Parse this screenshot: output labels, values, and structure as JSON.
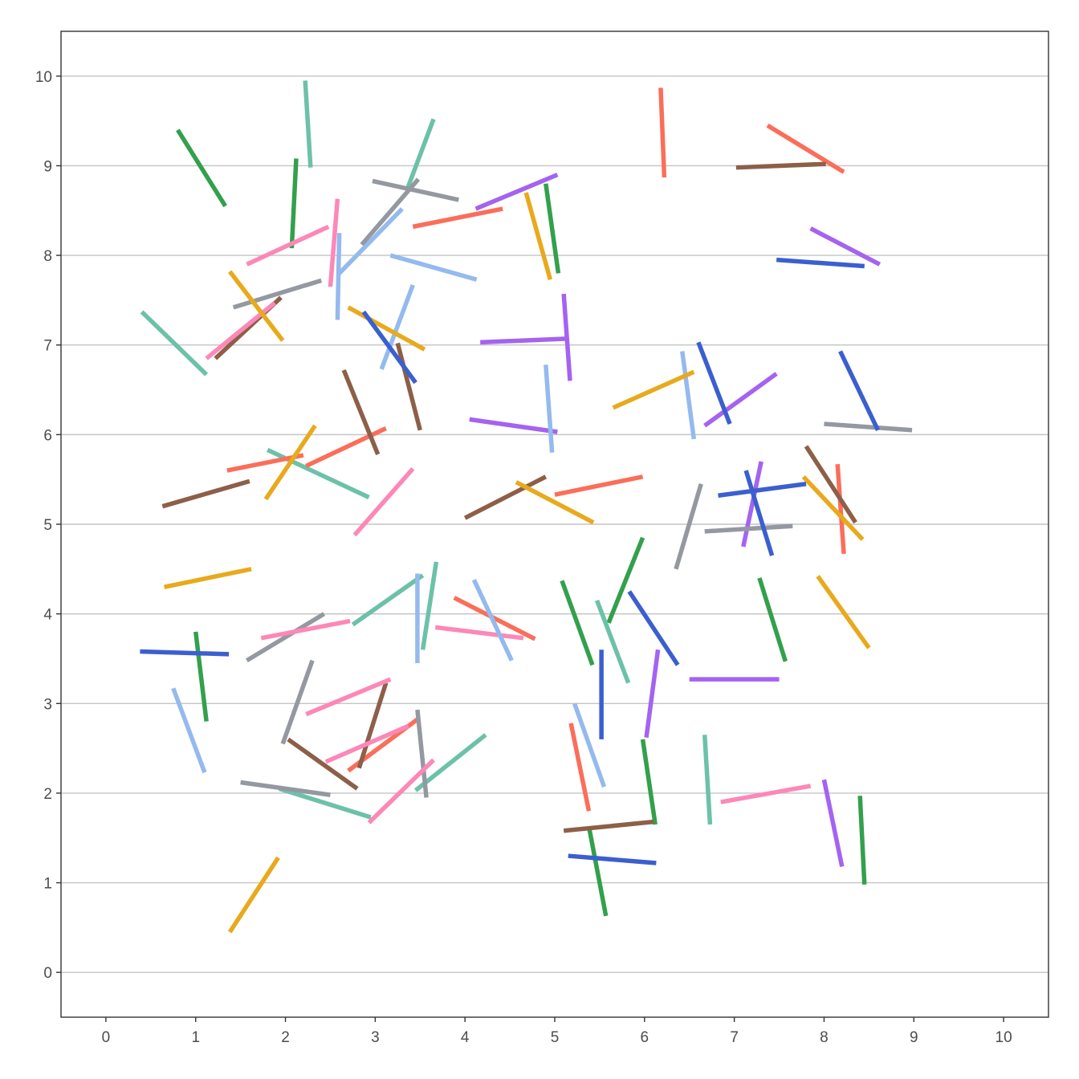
{
  "chart_data": {
    "type": "segments",
    "title": "",
    "xlabel": "",
    "ylabel": "",
    "xlim": [
      -0.5,
      10.5
    ],
    "ylim": [
      -0.5,
      10.5
    ],
    "x_ticks": [
      "0",
      "1",
      "2",
      "3",
      "4",
      "5",
      "6",
      "7",
      "8",
      "9",
      "10"
    ],
    "y_ticks": [
      "0",
      "1",
      "2",
      "3",
      "4",
      "5",
      "6",
      "7",
      "8",
      "9",
      "10"
    ],
    "grid": "horizontal major lines",
    "legend": "none",
    "colors": {
      "green": "#33a04c",
      "teal": "#6cc1a9",
      "salmon": "#fa6e5a",
      "brown": "#8d5f48",
      "purple": "#a463f0",
      "gray": "#9498a1",
      "pink": "#fc88b8",
      "lightblue": "#94baee",
      "gold": "#e8aa1c",
      "blue": "#3b5fcf"
    },
    "segments": [
      {
        "x1": 0.8,
        "y1": 9.4,
        "x2": 1.33,
        "y2": 8.55,
        "color": "green"
      },
      {
        "x1": 2.07,
        "y1": 8.08,
        "x2": 2.12,
        "y2": 9.08,
        "color": "green"
      },
      {
        "x1": 4.9,
        "y1": 8.8,
        "x2": 5.04,
        "y2": 7.8,
        "color": "green"
      },
      {
        "x1": 1.0,
        "y1": 3.8,
        "x2": 1.12,
        "y2": 2.8,
        "color": "green"
      },
      {
        "x1": 5.08,
        "y1": 4.37,
        "x2": 5.42,
        "y2": 3.43,
        "color": "green"
      },
      {
        "x1": 5.6,
        "y1": 3.9,
        "x2": 5.98,
        "y2": 4.85,
        "color": "green"
      },
      {
        "x1": 7.28,
        "y1": 4.4,
        "x2": 7.57,
        "y2": 3.47,
        "color": "green"
      },
      {
        "x1": 5.98,
        "y1": 2.6,
        "x2": 6.12,
        "y2": 1.65,
        "color": "green"
      },
      {
        "x1": 5.38,
        "y1": 1.63,
        "x2": 5.57,
        "y2": 0.63,
        "color": "green"
      },
      {
        "x1": 8.4,
        "y1": 1.97,
        "x2": 8.45,
        "y2": 0.98,
        "color": "green"
      },
      {
        "x1": 2.22,
        "y1": 9.95,
        "x2": 2.28,
        "y2": 8.98,
        "color": "teal"
      },
      {
        "x1": 3.35,
        "y1": 8.72,
        "x2": 3.65,
        "y2": 9.52,
        "color": "teal"
      },
      {
        "x1": 0.4,
        "y1": 7.37,
        "x2": 1.12,
        "y2": 6.67,
        "color": "teal"
      },
      {
        "x1": 1.8,
        "y1": 5.83,
        "x2": 2.93,
        "y2": 5.3,
        "color": "teal"
      },
      {
        "x1": 2.75,
        "y1": 3.88,
        "x2": 3.53,
        "y2": 4.43,
        "color": "teal"
      },
      {
        "x1": 3.53,
        "y1": 3.6,
        "x2": 3.68,
        "y2": 4.58,
        "color": "teal"
      },
      {
        "x1": 5.47,
        "y1": 4.15,
        "x2": 5.82,
        "y2": 3.23,
        "color": "teal"
      },
      {
        "x1": 3.45,
        "y1": 2.03,
        "x2": 4.23,
        "y2": 2.65,
        "color": "teal"
      },
      {
        "x1": 1.93,
        "y1": 2.05,
        "x2": 2.95,
        "y2": 1.73,
        "color": "teal"
      },
      {
        "x1": 6.67,
        "y1": 2.65,
        "x2": 6.73,
        "y2": 1.65,
        "color": "teal"
      },
      {
        "x1": 6.18,
        "y1": 9.87,
        "x2": 6.22,
        "y2": 8.87,
        "color": "salmon"
      },
      {
        "x1": 7.37,
        "y1": 9.45,
        "x2": 8.22,
        "y2": 8.93,
        "color": "salmon"
      },
      {
        "x1": 3.42,
        "y1": 8.32,
        "x2": 4.42,
        "y2": 8.52,
        "color": "salmon"
      },
      {
        "x1": 1.35,
        "y1": 5.6,
        "x2": 2.2,
        "y2": 5.77,
        "color": "salmon"
      },
      {
        "x1": 2.23,
        "y1": 5.65,
        "x2": 3.12,
        "y2": 6.07,
        "color": "salmon"
      },
      {
        "x1": 5.0,
        "y1": 5.33,
        "x2": 5.98,
        "y2": 5.53,
        "color": "salmon"
      },
      {
        "x1": 8.15,
        "y1": 5.67,
        "x2": 8.22,
        "y2": 4.67,
        "color": "salmon"
      },
      {
        "x1": 3.88,
        "y1": 4.18,
        "x2": 4.78,
        "y2": 3.72,
        "color": "salmon"
      },
      {
        "x1": 2.7,
        "y1": 2.25,
        "x2": 3.48,
        "y2": 2.83,
        "color": "salmon"
      },
      {
        "x1": 5.18,
        "y1": 2.78,
        "x2": 5.38,
        "y2": 1.8,
        "color": "salmon"
      },
      {
        "x1": 7.02,
        "y1": 8.98,
        "x2": 8.02,
        "y2": 9.02,
        "color": "brown"
      },
      {
        "x1": 1.22,
        "y1": 6.85,
        "x2": 1.95,
        "y2": 7.53,
        "color": "brown"
      },
      {
        "x1": 2.65,
        "y1": 6.72,
        "x2": 3.03,
        "y2": 5.78,
        "color": "brown"
      },
      {
        "x1": 3.25,
        "y1": 7.02,
        "x2": 3.5,
        "y2": 6.05,
        "color": "brown"
      },
      {
        "x1": 0.63,
        "y1": 5.2,
        "x2": 1.6,
        "y2": 5.48,
        "color": "brown"
      },
      {
        "x1": 4.0,
        "y1": 5.07,
        "x2": 4.9,
        "y2": 5.53,
        "color": "brown"
      },
      {
        "x1": 7.8,
        "y1": 5.87,
        "x2": 8.35,
        "y2": 5.02,
        "color": "brown"
      },
      {
        "x1": 2.82,
        "y1": 2.28,
        "x2": 3.12,
        "y2": 3.23,
        "color": "brown"
      },
      {
        "x1": 2.03,
        "y1": 2.6,
        "x2": 2.8,
        "y2": 2.05,
        "color": "brown"
      },
      {
        "x1": 5.1,
        "y1": 1.58,
        "x2": 6.1,
        "y2": 1.68,
        "color": "brown"
      },
      {
        "x1": 4.12,
        "y1": 8.52,
        "x2": 5.03,
        "y2": 8.9,
        "color": "purple"
      },
      {
        "x1": 7.85,
        "y1": 8.3,
        "x2": 8.62,
        "y2": 7.9,
        "color": "purple"
      },
      {
        "x1": 4.17,
        "y1": 7.03,
        "x2": 5.13,
        "y2": 7.07,
        "color": "purple"
      },
      {
        "x1": 5.1,
        "y1": 7.57,
        "x2": 5.17,
        "y2": 6.6,
        "color": "purple"
      },
      {
        "x1": 4.05,
        "y1": 6.17,
        "x2": 5.03,
        "y2": 6.03,
        "color": "purple"
      },
      {
        "x1": 6.67,
        "y1": 6.1,
        "x2": 7.47,
        "y2": 6.68,
        "color": "purple"
      },
      {
        "x1": 7.1,
        "y1": 4.75,
        "x2": 7.3,
        "y2": 5.7,
        "color": "purple"
      },
      {
        "x1": 6.02,
        "y1": 2.62,
        "x2": 6.15,
        "y2": 3.6,
        "color": "purple"
      },
      {
        "x1": 6.5,
        "y1": 3.27,
        "x2": 7.5,
        "y2": 3.27,
        "color": "purple"
      },
      {
        "x1": 8.0,
        "y1": 2.15,
        "x2": 8.2,
        "y2": 1.18,
        "color": "purple"
      },
      {
        "x1": 2.97,
        "y1": 8.83,
        "x2": 3.93,
        "y2": 8.62,
        "color": "gray"
      },
      {
        "x1": 2.85,
        "y1": 8.12,
        "x2": 3.48,
        "y2": 8.85,
        "color": "gray"
      },
      {
        "x1": 1.42,
        "y1": 7.42,
        "x2": 2.4,
        "y2": 7.72,
        "color": "gray"
      },
      {
        "x1": 8.0,
        "y1": 6.12,
        "x2": 8.98,
        "y2": 6.05,
        "color": "gray"
      },
      {
        "x1": 6.35,
        "y1": 4.5,
        "x2": 6.63,
        "y2": 5.45,
        "color": "gray"
      },
      {
        "x1": 6.67,
        "y1": 4.92,
        "x2": 7.65,
        "y2": 4.98,
        "color": "gray"
      },
      {
        "x1": 1.57,
        "y1": 3.48,
        "x2": 2.43,
        "y2": 4.0,
        "color": "gray"
      },
      {
        "x1": 1.97,
        "y1": 2.55,
        "x2": 2.3,
        "y2": 3.48,
        "color": "gray"
      },
      {
        "x1": 3.47,
        "y1": 2.93,
        "x2": 3.57,
        "y2": 1.95,
        "color": "gray"
      },
      {
        "x1": 1.5,
        "y1": 2.12,
        "x2": 2.5,
        "y2": 1.98,
        "color": "gray"
      },
      {
        "x1": 1.57,
        "y1": 7.9,
        "x2": 2.48,
        "y2": 8.32,
        "color": "pink"
      },
      {
        "x1": 2.5,
        "y1": 7.65,
        "x2": 2.58,
        "y2": 8.63,
        "color": "pink"
      },
      {
        "x1": 1.12,
        "y1": 6.85,
        "x2": 1.88,
        "y2": 7.47,
        "color": "pink"
      },
      {
        "x1": 2.77,
        "y1": 4.88,
        "x2": 3.42,
        "y2": 5.62,
        "color": "pink"
      },
      {
        "x1": 1.73,
        "y1": 3.73,
        "x2": 2.72,
        "y2": 3.92,
        "color": "pink"
      },
      {
        "x1": 3.67,
        "y1": 3.85,
        "x2": 4.65,
        "y2": 3.73,
        "color": "pink"
      },
      {
        "x1": 2.23,
        "y1": 2.88,
        "x2": 3.17,
        "y2": 3.27,
        "color": "pink"
      },
      {
        "x1": 2.45,
        "y1": 2.35,
        "x2": 3.37,
        "y2": 2.75,
        "color": "pink"
      },
      {
        "x1": 2.93,
        "y1": 1.67,
        "x2": 3.65,
        "y2": 2.37,
        "color": "pink"
      },
      {
        "x1": 6.85,
        "y1": 1.9,
        "x2": 7.85,
        "y2": 2.08,
        "color": "pink"
      },
      {
        "x1": 2.58,
        "y1": 7.28,
        "x2": 2.6,
        "y2": 8.25,
        "color": "lightblue"
      },
      {
        "x1": 2.6,
        "y1": 7.8,
        "x2": 3.3,
        "y2": 8.52,
        "color": "lightblue"
      },
      {
        "x1": 3.17,
        "y1": 8.0,
        "x2": 4.13,
        "y2": 7.73,
        "color": "lightblue"
      },
      {
        "x1": 3.07,
        "y1": 6.73,
        "x2": 3.42,
        "y2": 7.67,
        "color": "lightblue"
      },
      {
        "x1": 4.9,
        "y1": 6.78,
        "x2": 4.97,
        "y2": 5.8,
        "color": "lightblue"
      },
      {
        "x1": 6.42,
        "y1": 6.93,
        "x2": 6.55,
        "y2": 5.95,
        "color": "lightblue"
      },
      {
        "x1": 3.47,
        "y1": 3.45,
        "x2": 3.47,
        "y2": 4.45,
        "color": "lightblue"
      },
      {
        "x1": 4.1,
        "y1": 4.38,
        "x2": 4.52,
        "y2": 3.48,
        "color": "lightblue"
      },
      {
        "x1": 0.75,
        "y1": 3.17,
        "x2": 1.1,
        "y2": 2.23,
        "color": "lightblue"
      },
      {
        "x1": 5.22,
        "y1": 3.0,
        "x2": 5.55,
        "y2": 2.07,
        "color": "lightblue"
      },
      {
        "x1": 4.68,
        "y1": 8.7,
        "x2": 4.95,
        "y2": 7.73,
        "color": "gold"
      },
      {
        "x1": 1.38,
        "y1": 7.82,
        "x2": 1.97,
        "y2": 7.05,
        "color": "gold"
      },
      {
        "x1": 2.7,
        "y1": 7.42,
        "x2": 3.55,
        "y2": 6.95,
        "color": "gold"
      },
      {
        "x1": 5.65,
        "y1": 6.3,
        "x2": 6.55,
        "y2": 6.7,
        "color": "gold"
      },
      {
        "x1": 1.78,
        "y1": 5.28,
        "x2": 2.33,
        "y2": 6.1,
        "color": "gold"
      },
      {
        "x1": 4.57,
        "y1": 5.47,
        "x2": 5.43,
        "y2": 5.02,
        "color": "gold"
      },
      {
        "x1": 7.77,
        "y1": 5.53,
        "x2": 8.43,
        "y2": 4.83,
        "color": "gold"
      },
      {
        "x1": 0.65,
        "y1": 4.3,
        "x2": 1.62,
        "y2": 4.5,
        "color": "gold"
      },
      {
        "x1": 7.93,
        "y1": 4.42,
        "x2": 8.5,
        "y2": 3.62,
        "color": "gold"
      },
      {
        "x1": 1.38,
        "y1": 0.45,
        "x2": 1.92,
        "y2": 1.28,
        "color": "gold"
      },
      {
        "x1": 7.47,
        "y1": 7.95,
        "x2": 8.45,
        "y2": 7.88,
        "color": "blue"
      },
      {
        "x1": 2.87,
        "y1": 7.37,
        "x2": 3.45,
        "y2": 6.58,
        "color": "blue"
      },
      {
        "x1": 6.6,
        "y1": 7.03,
        "x2": 6.95,
        "y2": 6.12,
        "color": "blue"
      },
      {
        "x1": 8.18,
        "y1": 6.93,
        "x2": 8.6,
        "y2": 6.05,
        "color": "blue"
      },
      {
        "x1": 6.82,
        "y1": 5.32,
        "x2": 7.8,
        "y2": 5.45,
        "color": "blue"
      },
      {
        "x1": 7.13,
        "y1": 5.6,
        "x2": 7.42,
        "y2": 4.65,
        "color": "blue"
      },
      {
        "x1": 5.83,
        "y1": 4.25,
        "x2": 6.37,
        "y2": 3.43,
        "color": "blue"
      },
      {
        "x1": 0.38,
        "y1": 3.58,
        "x2": 1.37,
        "y2": 3.55,
        "color": "blue"
      },
      {
        "x1": 5.52,
        "y1": 3.6,
        "x2": 5.52,
        "y2": 2.6,
        "color": "blue"
      },
      {
        "x1": 5.15,
        "y1": 1.3,
        "x2": 6.13,
        "y2": 1.22,
        "color": "blue"
      }
    ]
  }
}
